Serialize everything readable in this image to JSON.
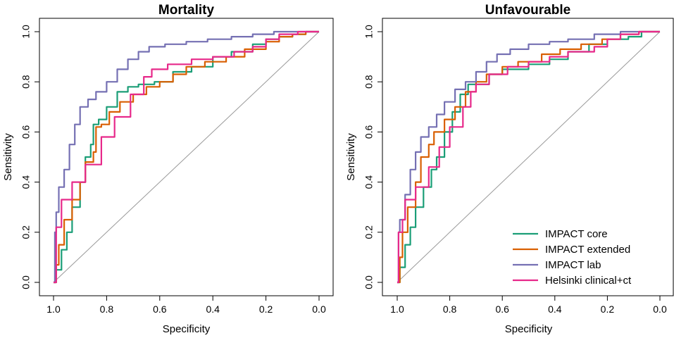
{
  "chart_data": [
    {
      "type": "line",
      "title": "Mortality",
      "xlabel": "Specificity",
      "ylabel": "Sensitivity",
      "xlim": [
        1.0,
        0.0
      ],
      "ylim": [
        0.0,
        1.0
      ],
      "xticks": [
        "1.0",
        "0.8",
        "0.6",
        "0.4",
        "0.2",
        "0.0"
      ],
      "yticks": [
        "0.0",
        "0.2",
        "0.4",
        "0.6",
        "0.8",
        "1.0"
      ],
      "legend": null,
      "series": [
        {
          "name": "IMPACT core",
          "color": "#1b9e77",
          "points": [
            [
              1.0,
              0.0
            ],
            [
              0.99,
              0.05
            ],
            [
              0.97,
              0.13
            ],
            [
              0.95,
              0.2
            ],
            [
              0.93,
              0.3
            ],
            [
              0.9,
              0.4
            ],
            [
              0.88,
              0.5
            ],
            [
              0.86,
              0.55
            ],
            [
              0.85,
              0.63
            ],
            [
              0.83,
              0.65
            ],
            [
              0.8,
              0.7
            ],
            [
              0.76,
              0.76
            ],
            [
              0.72,
              0.78
            ],
            [
              0.68,
              0.79
            ],
            [
              0.62,
              0.8
            ],
            [
              0.55,
              0.84
            ],
            [
              0.48,
              0.86
            ],
            [
              0.4,
              0.9
            ],
            [
              0.33,
              0.92
            ],
            [
              0.25,
              0.95
            ],
            [
              0.2,
              0.97
            ],
            [
              0.15,
              0.98
            ],
            [
              0.1,
              0.99
            ],
            [
              0.05,
              1.0
            ],
            [
              0.0,
              1.0
            ]
          ]
        },
        {
          "name": "IMPACT extended",
          "color": "#d95f02",
          "points": [
            [
              1.0,
              0.0
            ],
            [
              0.99,
              0.07
            ],
            [
              0.98,
              0.15
            ],
            [
              0.96,
              0.25
            ],
            [
              0.93,
              0.33
            ],
            [
              0.9,
              0.4
            ],
            [
              0.88,
              0.48
            ],
            [
              0.85,
              0.52
            ],
            [
              0.84,
              0.62
            ],
            [
              0.82,
              0.63
            ],
            [
              0.79,
              0.68
            ],
            [
              0.75,
              0.72
            ],
            [
              0.7,
              0.75
            ],
            [
              0.65,
              0.78
            ],
            [
              0.6,
              0.8
            ],
            [
              0.55,
              0.83
            ],
            [
              0.5,
              0.86
            ],
            [
              0.43,
              0.88
            ],
            [
              0.35,
              0.9
            ],
            [
              0.28,
              0.93
            ],
            [
              0.2,
              0.96
            ],
            [
              0.15,
              0.98
            ],
            [
              0.1,
              0.99
            ],
            [
              0.05,
              1.0
            ],
            [
              0.0,
              1.0
            ]
          ]
        },
        {
          "name": "IMPACT lab",
          "color": "#7570b3",
          "points": [
            [
              1.0,
              0.0
            ],
            [
              0.995,
              0.2
            ],
            [
              0.99,
              0.28
            ],
            [
              0.98,
              0.38
            ],
            [
              0.96,
              0.45
            ],
            [
              0.94,
              0.55
            ],
            [
              0.92,
              0.63
            ],
            [
              0.9,
              0.7
            ],
            [
              0.87,
              0.73
            ],
            [
              0.84,
              0.76
            ],
            [
              0.8,
              0.8
            ],
            [
              0.76,
              0.85
            ],
            [
              0.72,
              0.89
            ],
            [
              0.68,
              0.92
            ],
            [
              0.64,
              0.94
            ],
            [
              0.58,
              0.95
            ],
            [
              0.5,
              0.96
            ],
            [
              0.42,
              0.97
            ],
            [
              0.33,
              0.98
            ],
            [
              0.25,
              0.99
            ],
            [
              0.17,
              1.0
            ],
            [
              0.1,
              1.0
            ],
            [
              0.0,
              1.0
            ]
          ]
        },
        {
          "name": "Helsinki clinical+ct",
          "color": "#e7298a",
          "points": [
            [
              1.0,
              0.0
            ],
            [
              0.99,
              0.22
            ],
            [
              0.97,
              0.33
            ],
            [
              0.93,
              0.4
            ],
            [
              0.88,
              0.47
            ],
            [
              0.82,
              0.58
            ],
            [
              0.77,
              0.66
            ],
            [
              0.71,
              0.75
            ],
            [
              0.66,
              0.82
            ],
            [
              0.63,
              0.85
            ],
            [
              0.57,
              0.87
            ],
            [
              0.48,
              0.89
            ],
            [
              0.4,
              0.9
            ],
            [
              0.32,
              0.92
            ],
            [
              0.25,
              0.94
            ],
            [
              0.2,
              0.97
            ],
            [
              0.15,
              0.99
            ],
            [
              0.08,
              1.0
            ],
            [
              0.0,
              1.0
            ]
          ]
        }
      ]
    },
    {
      "type": "line",
      "title": "Unfavourable",
      "xlabel": "Specificity",
      "ylabel": "Sensitivity",
      "xlim": [
        1.0,
        0.0
      ],
      "ylim": [
        0.0,
        1.0
      ],
      "xticks": [
        "1.0",
        "0.8",
        "0.6",
        "0.4",
        "0.2",
        "0.0"
      ],
      "yticks": [
        "0.0",
        "0.2",
        "0.4",
        "0.6",
        "0.8",
        "1.0"
      ],
      "legend": "bottom-right",
      "series": [
        {
          "name": "IMPACT core",
          "color": "#1b9e77",
          "points": [
            [
              1.0,
              0.0
            ],
            [
              0.99,
              0.06
            ],
            [
              0.97,
              0.15
            ],
            [
              0.95,
              0.22
            ],
            [
              0.93,
              0.3
            ],
            [
              0.9,
              0.38
            ],
            [
              0.87,
              0.45
            ],
            [
              0.85,
              0.5
            ],
            [
              0.82,
              0.6
            ],
            [
              0.79,
              0.68
            ],
            [
              0.76,
              0.75
            ],
            [
              0.73,
              0.79
            ],
            [
              0.69,
              0.79
            ],
            [
              0.65,
              0.83
            ],
            [
              0.6,
              0.85
            ],
            [
              0.5,
              0.87
            ],
            [
              0.42,
              0.89
            ],
            [
              0.35,
              0.92
            ],
            [
              0.27,
              0.95
            ],
            [
              0.2,
              0.97
            ],
            [
              0.12,
              0.98
            ],
            [
              0.07,
              1.0
            ],
            [
              0.0,
              1.0
            ]
          ]
        },
        {
          "name": "IMPACT extended",
          "color": "#d95f02",
          "points": [
            [
              1.0,
              0.0
            ],
            [
              0.99,
              0.1
            ],
            [
              0.98,
              0.2
            ],
            [
              0.96,
              0.3
            ],
            [
              0.93,
              0.4
            ],
            [
              0.91,
              0.5
            ],
            [
              0.88,
              0.55
            ],
            [
              0.86,
              0.6
            ],
            [
              0.82,
              0.65
            ],
            [
              0.78,
              0.7
            ],
            [
              0.74,
              0.76
            ],
            [
              0.7,
              0.8
            ],
            [
              0.66,
              0.83
            ],
            [
              0.6,
              0.86
            ],
            [
              0.54,
              0.88
            ],
            [
              0.45,
              0.91
            ],
            [
              0.38,
              0.93
            ],
            [
              0.3,
              0.95
            ],
            [
              0.22,
              0.97
            ],
            [
              0.15,
              0.99
            ],
            [
              0.08,
              1.0
            ],
            [
              0.0,
              1.0
            ]
          ]
        },
        {
          "name": "IMPACT lab",
          "color": "#7570b3",
          "points": [
            [
              1.0,
              0.0
            ],
            [
              0.995,
              0.2
            ],
            [
              0.99,
              0.25
            ],
            [
              0.97,
              0.35
            ],
            [
              0.95,
              0.45
            ],
            [
              0.93,
              0.52
            ],
            [
              0.91,
              0.58
            ],
            [
              0.88,
              0.62
            ],
            [
              0.85,
              0.67
            ],
            [
              0.82,
              0.72
            ],
            [
              0.78,
              0.77
            ],
            [
              0.74,
              0.8
            ],
            [
              0.7,
              0.84
            ],
            [
              0.66,
              0.88
            ],
            [
              0.62,
              0.91
            ],
            [
              0.57,
              0.93
            ],
            [
              0.5,
              0.95
            ],
            [
              0.42,
              0.96
            ],
            [
              0.35,
              0.97
            ],
            [
              0.25,
              0.99
            ],
            [
              0.15,
              1.0
            ],
            [
              0.0,
              1.0
            ]
          ]
        },
        {
          "name": "Helsinki clinical+ct",
          "color": "#e7298a",
          "points": [
            [
              1.0,
              0.0
            ],
            [
              0.995,
              0.2
            ],
            [
              0.98,
              0.25
            ],
            [
              0.97,
              0.33
            ],
            [
              0.93,
              0.38
            ],
            [
              0.88,
              0.46
            ],
            [
              0.84,
              0.54
            ],
            [
              0.8,
              0.62
            ],
            [
              0.75,
              0.7
            ],
            [
              0.72,
              0.76
            ],
            [
              0.7,
              0.79
            ],
            [
              0.65,
              0.83
            ],
            [
              0.58,
              0.86
            ],
            [
              0.5,
              0.88
            ],
            [
              0.42,
              0.9
            ],
            [
              0.35,
              0.92
            ],
            [
              0.25,
              0.94
            ],
            [
              0.2,
              0.97
            ],
            [
              0.15,
              0.99
            ],
            [
              0.08,
              1.0
            ],
            [
              0.0,
              1.0
            ]
          ]
        }
      ]
    }
  ]
}
